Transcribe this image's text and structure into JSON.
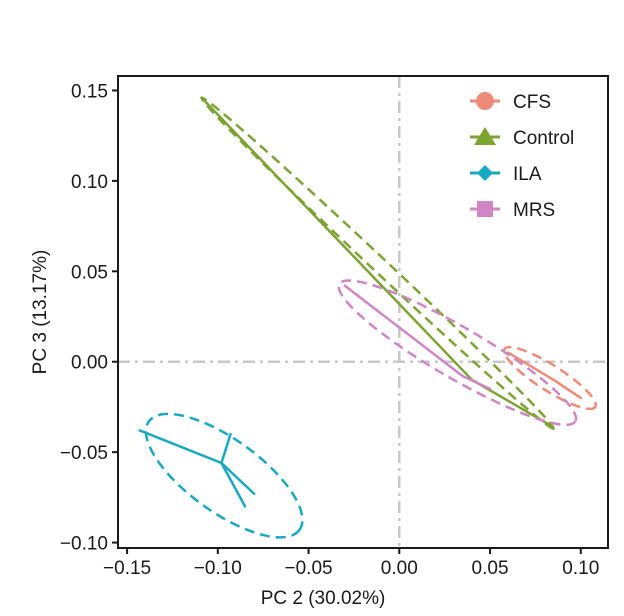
{
  "chart_data": {
    "type": "scatter",
    "subtype": "PCA ordination with group centroid spiders and dashed confidence ellipses",
    "xlabel": "PC 2 (30.02%)",
    "ylabel": "PC 3 (13.17%)",
    "xlim": [
      -0.155,
      0.115
    ],
    "ylim": [
      -0.103,
      0.158
    ],
    "x_ticks": [
      -0.15,
      -0.1,
      -0.05,
      0.0,
      0.05,
      0.1
    ],
    "x_tick_labels": [
      "−0.15",
      "−0.10",
      "−0.05",
      "0.00",
      "0.05",
      "0.10"
    ],
    "y_ticks": [
      -0.1,
      -0.05,
      0.0,
      0.05,
      0.1,
      0.15
    ],
    "y_tick_labels": [
      "−0.10",
      "−0.05",
      "0.00",
      "0.05",
      "0.10",
      "0.15"
    ],
    "reference_lines": {
      "x": 0,
      "y": 0,
      "style": "dash-dot",
      "color": "#c8c8c8"
    },
    "grid": false,
    "legend_position": "top-right",
    "series": [
      {
        "name": "CFS",
        "color": "#ee8a78",
        "marker": "circle",
        "centroid": [
          0.085,
          -0.01
        ],
        "points": [
          [
            0.06,
            0.005
          ],
          [
            0.1,
            -0.02
          ]
        ],
        "ellipse": {
          "points": [
            [
              0.058,
              0.007
            ],
            [
              0.108,
              -0.025
            ]
          ],
          "half_width": 0.007
        }
      },
      {
        "name": "Control",
        "color": "#7da332",
        "marker": "triangle",
        "centroid": [
          0.04,
          -0.01
        ],
        "points": [
          [
            -0.108,
            0.145
          ],
          [
            0.083,
            -0.035
          ]
        ],
        "ellipse": {
          "points": [
            [
              -0.109,
              0.146
            ],
            [
              0.085,
              -0.037
            ]
          ],
          "half_width": 0.004
        }
      },
      {
        "name": "ILA",
        "color": "#17a9c4",
        "marker": "diamond",
        "centroid": [
          -0.098,
          -0.056
        ],
        "points": [
          [
            -0.143,
            -0.038
          ],
          [
            -0.093,
            -0.04
          ],
          [
            -0.08,
            -0.073
          ],
          [
            -0.085,
            -0.08
          ]
        ],
        "ellipse": {
          "points": [
            [
              -0.138,
              -0.033
            ],
            [
              -0.055,
              -0.093
            ]
          ],
          "half_width": 0.02
        }
      },
      {
        "name": "MRS",
        "color": "#d085c5",
        "marker": "square",
        "centroid": [
          0.035,
          -0.008
        ],
        "points": [
          [
            -0.03,
            0.042
          ],
          [
            0.05,
            -0.015
          ]
        ],
        "ellipse": {
          "points": [
            [
              -0.033,
              0.043
            ],
            [
              0.097,
              -0.033
            ]
          ],
          "half_width": 0.014
        }
      }
    ]
  }
}
